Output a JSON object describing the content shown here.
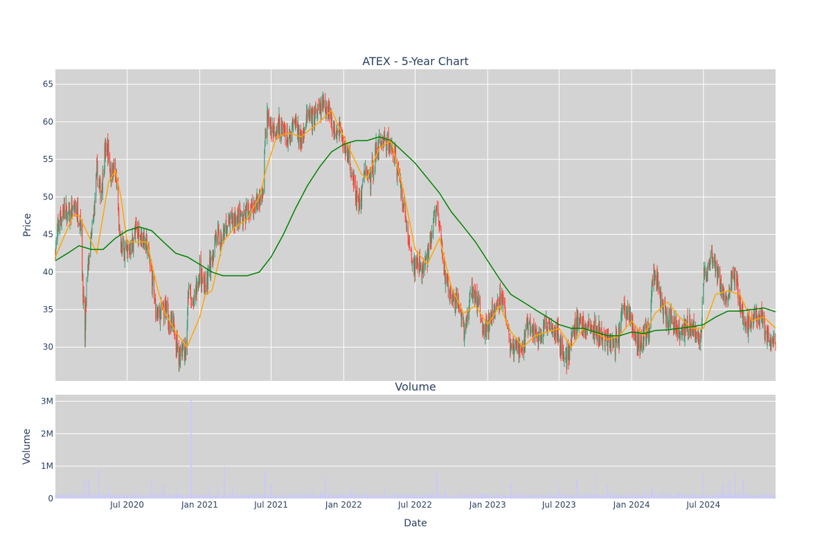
{
  "chart_data": [
    {
      "type": "candlestick",
      "title": "ATEX - 5-Year Chart",
      "ylabel": "Price",
      "ylim": [
        25.5,
        67
      ],
      "yticks": [
        30,
        35,
        40,
        45,
        50,
        55,
        60,
        65
      ],
      "colors": {
        "background": "#d3d3d3",
        "grid": "#ffffff",
        "up": "#3d9970",
        "down": "#ff4136",
        "ma_short": "#ffa500",
        "ma_long": "#008000"
      },
      "price_path": [
        [
          "2020-01-01",
          43
        ],
        [
          "2020-01-10",
          46.5
        ],
        [
          "2020-01-20",
          48
        ],
        [
          "2020-02-05",
          47.5
        ],
        [
          "2020-02-20",
          48.5
        ],
        [
          "2020-03-05",
          47
        ],
        [
          "2020-03-12",
          36
        ],
        [
          "2020-03-16",
          31
        ],
        [
          "2020-03-20",
          38
        ],
        [
          "2020-03-28",
          43
        ],
        [
          "2020-04-05",
          46
        ],
        [
          "2020-04-15",
          53.5
        ],
        [
          "2020-04-25",
          50
        ],
        [
          "2020-05-05",
          55.5
        ],
        [
          "2020-05-12",
          56.5
        ],
        [
          "2020-05-20",
          53
        ],
        [
          "2020-05-28",
          54
        ],
        [
          "2020-06-05",
          51
        ],
        [
          "2020-06-12",
          44
        ],
        [
          "2020-06-20",
          43
        ],
        [
          "2020-07-01",
          42.5
        ],
        [
          "2020-07-10",
          43.5
        ],
        [
          "2020-07-20",
          45
        ],
        [
          "2020-08-01",
          45.5
        ],
        [
          "2020-08-10",
          44.5
        ],
        [
          "2020-08-20",
          43.5
        ],
        [
          "2020-08-30",
          41
        ],
        [
          "2020-09-05",
          37.5
        ],
        [
          "2020-09-12",
          34.5
        ],
        [
          "2020-09-25",
          34.5
        ],
        [
          "2020-10-10",
          35
        ],
        [
          "2020-10-20",
          33
        ],
        [
          "2020-10-30",
          32
        ],
        [
          "2020-11-08",
          29
        ],
        [
          "2020-11-18",
          30
        ],
        [
          "2020-11-28",
          29.5
        ],
        [
          "2020-12-03",
          37
        ],
        [
          "2020-12-08",
          37.5
        ],
        [
          "2020-12-12",
          34.5
        ],
        [
          "2020-12-20",
          37
        ],
        [
          "2021-01-01",
          40
        ],
        [
          "2021-01-15",
          37.5
        ],
        [
          "2021-02-01",
          42
        ],
        [
          "2021-02-10",
          45
        ],
        [
          "2021-02-25",
          44
        ],
        [
          "2021-03-10",
          46
        ],
        [
          "2021-03-25",
          47
        ],
        [
          "2021-04-10",
          47
        ],
        [
          "2021-04-25",
          47.5
        ],
        [
          "2021-05-10",
          48.5
        ],
        [
          "2021-05-25",
          49.5
        ],
        [
          "2021-06-10",
          50
        ],
        [
          "2021-06-16",
          58
        ],
        [
          "2021-06-20",
          61
        ],
        [
          "2021-07-01",
          59
        ],
        [
          "2021-07-15",
          59.5
        ],
        [
          "2021-08-01",
          59
        ],
        [
          "2021-08-15",
          57
        ],
        [
          "2021-08-30",
          60
        ],
        [
          "2021-09-15",
          57.5
        ],
        [
          "2021-09-30",
          61
        ],
        [
          "2021-10-15",
          60
        ],
        [
          "2021-10-30",
          61.5
        ],
        [
          "2021-11-10",
          62
        ],
        [
          "2021-11-25",
          62
        ],
        [
          "2021-12-05",
          59
        ],
        [
          "2021-12-20",
          59.5
        ],
        [
          "2022-01-01",
          57
        ],
        [
          "2022-01-15",
          55
        ],
        [
          "2022-01-30",
          50.5
        ],
        [
          "2022-02-10",
          49
        ],
        [
          "2022-02-25",
          53.5
        ],
        [
          "2022-03-10",
          52.5
        ],
        [
          "2022-03-25",
          56
        ],
        [
          "2022-04-10",
          58
        ],
        [
          "2022-04-25",
          57
        ],
        [
          "2022-05-10",
          56
        ],
        [
          "2022-05-20",
          53
        ],
        [
          "2022-06-01",
          49.5
        ],
        [
          "2022-06-10",
          46
        ],
        [
          "2022-06-18",
          43
        ],
        [
          "2022-06-28",
          41
        ],
        [
          "2022-07-10",
          41
        ],
        [
          "2022-07-20",
          40.5
        ],
        [
          "2022-08-01",
          41.5
        ],
        [
          "2022-08-15",
          46
        ],
        [
          "2022-08-25",
          48.5
        ],
        [
          "2022-09-05",
          44
        ],
        [
          "2022-09-15",
          40
        ],
        [
          "2022-09-25",
          37
        ],
        [
          "2022-10-10",
          36
        ],
        [
          "2022-10-25",
          34.5
        ],
        [
          "2022-11-05",
          31.5
        ],
        [
          "2022-11-15",
          36
        ],
        [
          "2022-11-25",
          37.5
        ],
        [
          "2022-12-10",
          35
        ],
        [
          "2022-12-25",
          32
        ],
        [
          "2023-01-10",
          33.5
        ],
        [
          "2023-01-25",
          36
        ],
        [
          "2023-02-10",
          37
        ],
        [
          "2023-02-20",
          33
        ],
        [
          "2023-03-01",
          29.5
        ],
        [
          "2023-03-15",
          30
        ],
        [
          "2023-03-30",
          29.5
        ],
        [
          "2023-04-10",
          33
        ],
        [
          "2023-04-25",
          32
        ],
        [
          "2023-05-10",
          31.5
        ],
        [
          "2023-05-25",
          32.5
        ],
        [
          "2023-06-10",
          33
        ],
        [
          "2023-06-25",
          32
        ],
        [
          "2023-07-05",
          30
        ],
        [
          "2023-07-15",
          28.5
        ],
        [
          "2023-07-22",
          28.5
        ],
        [
          "2023-08-01",
          31
        ],
        [
          "2023-08-15",
          33.5
        ],
        [
          "2023-08-30",
          33
        ],
        [
          "2023-09-15",
          32.5
        ],
        [
          "2023-09-30",
          32
        ],
        [
          "2023-10-15",
          31.5
        ],
        [
          "2023-10-30",
          31
        ],
        [
          "2023-11-15",
          30.5
        ],
        [
          "2023-11-30",
          31.5
        ],
        [
          "2023-12-10",
          36
        ],
        [
          "2023-12-20",
          34.5
        ],
        [
          "2024-01-01",
          33.5
        ],
        [
          "2024-01-10",
          31
        ],
        [
          "2024-01-20",
          30
        ],
        [
          "2024-02-01",
          31.5
        ],
        [
          "2024-02-15",
          32
        ],
        [
          "2024-02-22",
          39
        ],
        [
          "2024-03-05",
          39.5
        ],
        [
          "2024-03-15",
          36
        ],
        [
          "2024-03-30",
          34
        ],
        [
          "2024-04-15",
          33.5
        ],
        [
          "2024-04-30",
          32.5
        ],
        [
          "2024-05-15",
          32.5
        ],
        [
          "2024-05-30",
          33
        ],
        [
          "2024-06-15",
          31.5
        ],
        [
          "2024-06-25",
          31
        ],
        [
          "2024-07-01",
          39.5
        ],
        [
          "2024-07-10",
          40
        ],
        [
          "2024-07-20",
          41.5
        ],
        [
          "2024-08-01",
          40.5
        ],
        [
          "2024-08-15",
          38
        ],
        [
          "2024-08-30",
          36
        ],
        [
          "2024-09-15",
          39.5
        ],
        [
          "2024-09-25",
          38
        ],
        [
          "2024-10-10",
          33.5
        ],
        [
          "2024-10-25",
          33
        ],
        [
          "2024-11-10",
          34.5
        ],
        [
          "2024-11-25",
          34
        ],
        [
          "2024-12-05",
          32
        ],
        [
          "2024-12-15",
          30.5
        ],
        [
          "2024-12-31",
          30.5
        ]
      ],
      "ma_short": [
        [
          "2020-01-01",
          42
        ],
        [
          "2020-02-15",
          47.5
        ],
        [
          "2020-03-01",
          47.5
        ],
        [
          "2020-04-15",
          42.5
        ],
        [
          "2020-05-15",
          52
        ],
        [
          "2020-06-01",
          53.5
        ],
        [
          "2020-06-15",
          50
        ],
        [
          "2020-07-01",
          44
        ],
        [
          "2020-08-01",
          44
        ],
        [
          "2020-08-20",
          44
        ],
        [
          "2020-09-15",
          38
        ],
        [
          "2020-10-01",
          35
        ],
        [
          "2020-11-01",
          32
        ],
        [
          "2020-11-30",
          30
        ],
        [
          "2021-01-01",
          34
        ],
        [
          "2021-01-15",
          37
        ],
        [
          "2021-02-01",
          37.5
        ],
        [
          "2021-03-01",
          44
        ],
        [
          "2021-04-01",
          46
        ],
        [
          "2021-05-01",
          47
        ],
        [
          "2021-06-01",
          50
        ],
        [
          "2021-06-20",
          54
        ],
        [
          "2021-07-15",
          58
        ],
        [
          "2021-08-15",
          58.5
        ],
        [
          "2021-09-15",
          58
        ],
        [
          "2021-11-01",
          60
        ],
        [
          "2021-12-01",
          61.5
        ],
        [
          "2022-01-01",
          58
        ],
        [
          "2022-02-15",
          53
        ],
        [
          "2022-03-01",
          52.5
        ],
        [
          "2022-04-01",
          56.5
        ],
        [
          "2022-05-01",
          57.5
        ],
        [
          "2022-06-01",
          51
        ],
        [
          "2022-07-01",
          43
        ],
        [
          "2022-08-01",
          41
        ],
        [
          "2022-09-01",
          44.5
        ],
        [
          "2022-10-01",
          38
        ],
        [
          "2022-11-01",
          34.5
        ],
        [
          "2022-12-01",
          35.5
        ],
        [
          "2023-01-01",
          33
        ],
        [
          "2023-02-01",
          35.5
        ],
        [
          "2023-03-01",
          32
        ],
        [
          "2023-04-01",
          30
        ],
        [
          "2023-05-01",
          31.5
        ],
        [
          "2023-06-01",
          32
        ],
        [
          "2023-07-01",
          32.5
        ],
        [
          "2023-08-01",
          30
        ],
        [
          "2023-09-01",
          32.5
        ],
        [
          "2023-10-01",
          32
        ],
        [
          "2023-11-01",
          31
        ],
        [
          "2023-12-01",
          31.5
        ],
        [
          "2024-01-01",
          33.5
        ],
        [
          "2024-02-01",
          31.5
        ],
        [
          "2024-03-01",
          34.5
        ],
        [
          "2024-04-01",
          36
        ],
        [
          "2024-05-01",
          34
        ],
        [
          "2024-06-01",
          32.5
        ],
        [
          "2024-07-01",
          32.5
        ],
        [
          "2024-08-01",
          37
        ],
        [
          "2024-09-01",
          37.5
        ],
        [
          "2024-10-01",
          37
        ],
        [
          "2024-11-01",
          33.5
        ],
        [
          "2024-12-01",
          34
        ],
        [
          "2024-12-31",
          32.5
        ]
      ],
      "ma_long": [
        [
          "2020-01-01",
          41.5
        ],
        [
          "2020-02-01",
          42.5
        ],
        [
          "2020-03-01",
          43.5
        ],
        [
          "2020-04-01",
          43
        ],
        [
          "2020-05-01",
          43
        ],
        [
          "2020-06-01",
          44.5
        ],
        [
          "2020-07-01",
          45.5
        ],
        [
          "2020-08-01",
          46
        ],
        [
          "2020-09-01",
          45.5
        ],
        [
          "2020-10-01",
          44
        ],
        [
          "2020-11-01",
          42.5
        ],
        [
          "2020-12-01",
          42
        ],
        [
          "2021-01-01",
          41
        ],
        [
          "2021-02-01",
          40
        ],
        [
          "2021-03-01",
          39.5
        ],
        [
          "2021-04-01",
          39.5
        ],
        [
          "2021-05-01",
          39.5
        ],
        [
          "2021-06-01",
          40
        ],
        [
          "2021-07-01",
          42
        ],
        [
          "2021-08-01",
          45
        ],
        [
          "2021-09-01",
          48.5
        ],
        [
          "2021-10-01",
          51.5
        ],
        [
          "2021-11-01",
          54
        ],
        [
          "2021-12-01",
          56
        ],
        [
          "2022-01-01",
          57
        ],
        [
          "2022-02-01",
          57.5
        ],
        [
          "2022-03-01",
          57.5
        ],
        [
          "2022-04-01",
          58
        ],
        [
          "2022-05-01",
          57.5
        ],
        [
          "2022-06-01",
          56
        ],
        [
          "2022-07-01",
          54.5
        ],
        [
          "2022-08-01",
          52.5
        ],
        [
          "2022-09-01",
          50.5
        ],
        [
          "2022-10-01",
          48
        ],
        [
          "2022-11-01",
          46
        ],
        [
          "2022-12-01",
          44
        ],
        [
          "2023-01-01",
          41.5
        ],
        [
          "2023-02-01",
          39
        ],
        [
          "2023-03-01",
          37
        ],
        [
          "2023-04-01",
          36
        ],
        [
          "2023-05-01",
          35
        ],
        [
          "2023-06-01",
          34
        ],
        [
          "2023-07-01",
          33
        ],
        [
          "2023-08-01",
          32.5
        ],
        [
          "2023-09-01",
          32.5
        ],
        [
          "2023-10-01",
          32
        ],
        [
          "2023-11-01",
          31.5
        ],
        [
          "2023-12-01",
          31.5
        ],
        [
          "2024-01-01",
          32
        ],
        [
          "2024-02-01",
          31.8
        ],
        [
          "2024-03-01",
          32.2
        ],
        [
          "2024-04-01",
          32.3
        ],
        [
          "2024-05-01",
          32.5
        ],
        [
          "2024-06-01",
          32.7
        ],
        [
          "2024-07-01",
          33
        ],
        [
          "2024-08-01",
          34
        ],
        [
          "2024-09-01",
          34.8
        ],
        [
          "2024-10-01",
          34.8
        ],
        [
          "2024-11-01",
          35
        ],
        [
          "2024-12-01",
          35.2
        ],
        [
          "2024-12-31",
          34.7
        ]
      ]
    },
    {
      "type": "bar",
      "title": "Volume",
      "xlabel": "Date",
      "ylabel": "Volume",
      "ylim": [
        0,
        3200000
      ],
      "yticks": [
        0,
        1000000,
        2000000,
        3000000
      ],
      "ytick_labels": [
        "0",
        "1M",
        "2M",
        "3M"
      ],
      "xlim": [
        "2020-01-01",
        "2024-12-31"
      ],
      "xticks": [
        "2020-07-01",
        "2021-01-01",
        "2021-07-01",
        "2022-01-01",
        "2022-07-01",
        "2023-01-01",
        "2023-07-01",
        "2024-01-01",
        "2024-07-01"
      ],
      "xtick_labels": [
        "Jul 2020",
        "Jan 2021",
        "Jul 2021",
        "Jan 2022",
        "Jul 2022",
        "Jan 2023",
        "Jul 2023",
        "Jan 2024",
        "Jul 2024"
      ],
      "color": "#c8c8ff",
      "spikes": [
        [
          "2020-03-16",
          600000
        ],
        [
          "2020-03-25",
          550000
        ],
        [
          "2020-04-20",
          950000
        ],
        [
          "2020-05-15",
          350000
        ],
        [
          "2020-09-01",
          550000
        ],
        [
          "2020-10-01",
          450000
        ],
        [
          "2020-11-01",
          500000
        ],
        [
          "2020-12-10",
          3050000
        ],
        [
          "2021-01-25",
          350000
        ],
        [
          "2021-02-15",
          450000
        ],
        [
          "2021-03-05",
          1000000
        ],
        [
          "2021-03-25",
          400000
        ],
        [
          "2021-06-16",
          850000
        ],
        [
          "2021-07-01",
          450000
        ],
        [
          "2021-11-15",
          700000
        ],
        [
          "2022-01-20",
          300000
        ],
        [
          "2022-04-15",
          350000
        ],
        [
          "2022-08-25",
          800000
        ],
        [
          "2022-09-15",
          300000
        ],
        [
          "2023-03-01",
          500000
        ],
        [
          "2023-07-01",
          450000
        ],
        [
          "2023-08-15",
          600000
        ],
        [
          "2023-10-01",
          850000
        ],
        [
          "2023-11-01",
          400000
        ],
        [
          "2024-02-22",
          350000
        ],
        [
          "2024-07-01",
          750000
        ],
        [
          "2024-08-20",
          450000
        ],
        [
          "2024-09-05",
          550000
        ],
        [
          "2024-09-20",
          800000
        ],
        [
          "2024-10-10",
          600000
        ]
      ]
    }
  ]
}
